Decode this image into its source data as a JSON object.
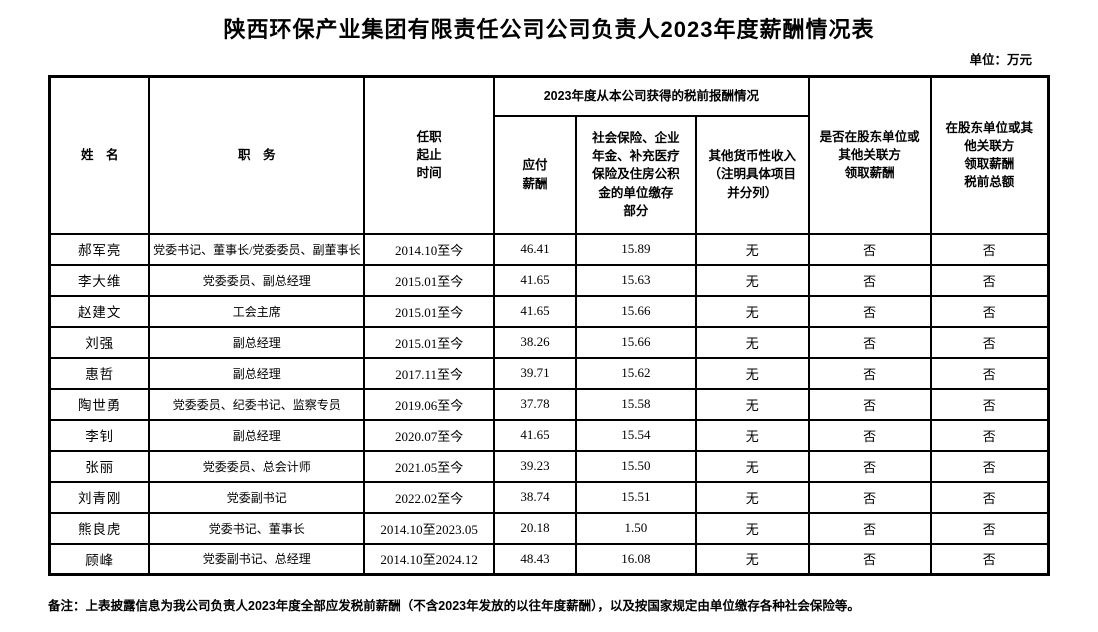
{
  "page": {
    "title": "陕西环保产业集团有限责任公司公司负责人2023年度薪酬情况表",
    "unit_label": "单位：万元",
    "footnote": "备注：上表披露信息为我公司负责人2023年度全部应发税前薪酬（不含2023年发放的以往年度薪酬），以及按国家规定由单位缴存各种社会保险等。"
  },
  "colors": {
    "text": "#000000",
    "border": "#000000",
    "background": "#ffffff"
  },
  "table": {
    "headers": {
      "name": "姓　名",
      "position": "职　务",
      "tenure": "任职\n起止\n时间",
      "group_pretax": "2023年度从本公司获得的税前报酬情况",
      "payable_salary": "应付\n薪酬",
      "social_insurance": "社会保险、企业\n年金、补充医疗\n保险及住房公积\n金的单位缴存\n部分",
      "other_income": "其他货币性收入\n（注明具体项目\n并分列）",
      "shareholder_paid": "是否在股东单位或\n其他关联方\n领取薪酬",
      "shareholder_pretax_total": "在股东单位或其\n他关联方\n领取薪酬\n税前总额"
    },
    "rows": [
      [
        "郝军亮",
        "党委书记、董事长/党委委员、副董事长",
        "2014.10至今",
        "46.41",
        "15.89",
        "无",
        "否",
        "否"
      ],
      [
        "李大维",
        "党委委员、副总经理",
        "2015.01至今",
        "41.65",
        "15.63",
        "无",
        "否",
        "否"
      ],
      [
        "赵建文",
        "工会主席",
        "2015.01至今",
        "41.65",
        "15.66",
        "无",
        "否",
        "否"
      ],
      [
        "刘强",
        "副总经理",
        "2015.01至今",
        "38.26",
        "15.66",
        "无",
        "否",
        "否"
      ],
      [
        "惠哲",
        "副总经理",
        "2017.11至今",
        "39.71",
        "15.62",
        "无",
        "否",
        "否"
      ],
      [
        "陶世勇",
        "党委委员、纪委书记、监察专员",
        "2019.06至今",
        "37.78",
        "15.58",
        "无",
        "否",
        "否"
      ],
      [
        "李钊",
        "副总经理",
        "2020.07至今",
        "41.65",
        "15.54",
        "无",
        "否",
        "否"
      ],
      [
        "张丽",
        "党委委员、总会计师",
        "2021.05至今",
        "39.23",
        "15.50",
        "无",
        "否",
        "否"
      ],
      [
        "刘青刚",
        "党委副书记",
        "2022.02至今",
        "38.74",
        "15.51",
        "无",
        "否",
        "否"
      ],
      [
        "熊良虎",
        "党委书记、董事长",
        "2014.10至2023.05",
        "20.18",
        "1.50",
        "无",
        "否",
        "否"
      ],
      [
        "顾峰",
        "党委副书记、总经理",
        "2014.10至2024.12",
        "48.43",
        "16.08",
        "无",
        "否",
        "否"
      ]
    ]
  }
}
